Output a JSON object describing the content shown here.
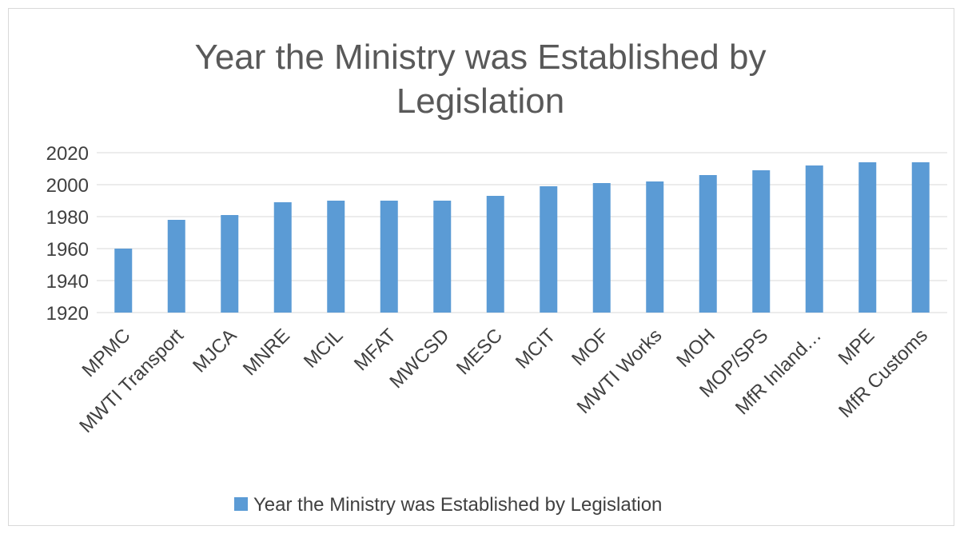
{
  "chart_data": {
    "type": "bar",
    "title": "Year the Ministry was Established by Legislation",
    "title_lines": [
      "Year the Ministry was Established by",
      "Legislation"
    ],
    "categories": [
      "MPMC",
      "MWTI Transport",
      "MJCA",
      "MNRE",
      "MCIL",
      "MFAT",
      "MWCSD",
      "MESC",
      "MCIT",
      "MOF",
      "MWTI Works",
      "MOH",
      "MOP/SPS",
      "MfR Inland…",
      "MPE",
      "MfR Customs"
    ],
    "series": [
      {
        "name": "Year the Ministry was Established by Legislation",
        "values": [
          1960,
          1978,
          1981,
          1989,
          1990,
          1990,
          1990,
          1993,
          1999,
          2001,
          2002,
          2006,
          2009,
          2012,
          2014,
          2014
        ],
        "color": "#5b9bd5"
      }
    ],
    "ylim": [
      1920,
      2020
    ],
    "yticks": [
      1920,
      1940,
      1960,
      1980,
      2000,
      2020
    ],
    "xlabel": "",
    "ylabel": "",
    "grid": true,
    "legend_position": "bottom"
  }
}
